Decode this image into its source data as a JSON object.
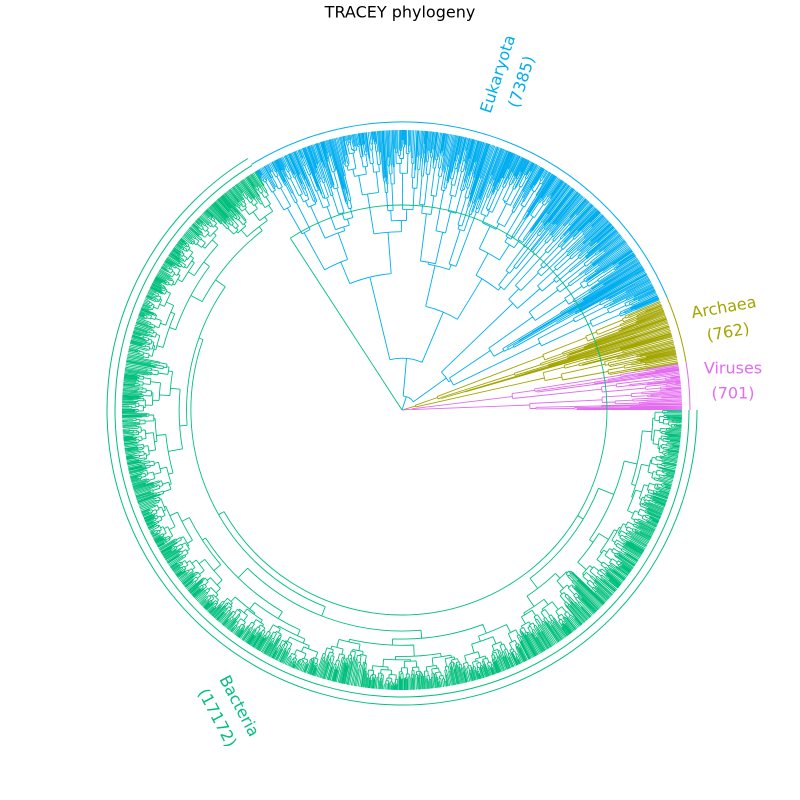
{
  "title": "TRACEY phylogeny",
  "clades": [
    {
      "name": "Eukaryota",
      "count": "(7385)",
      "color": "#00aef0"
    },
    {
      "name": "Archaea",
      "count": "(762)",
      "color": "#a3a500"
    },
    {
      "name": "Viruses",
      "count": "(701)",
      "color": "#e36bf0"
    },
    {
      "name": "Bacteria",
      "count": "(17172)",
      "color": "#00bf7d"
    }
  ]
}
